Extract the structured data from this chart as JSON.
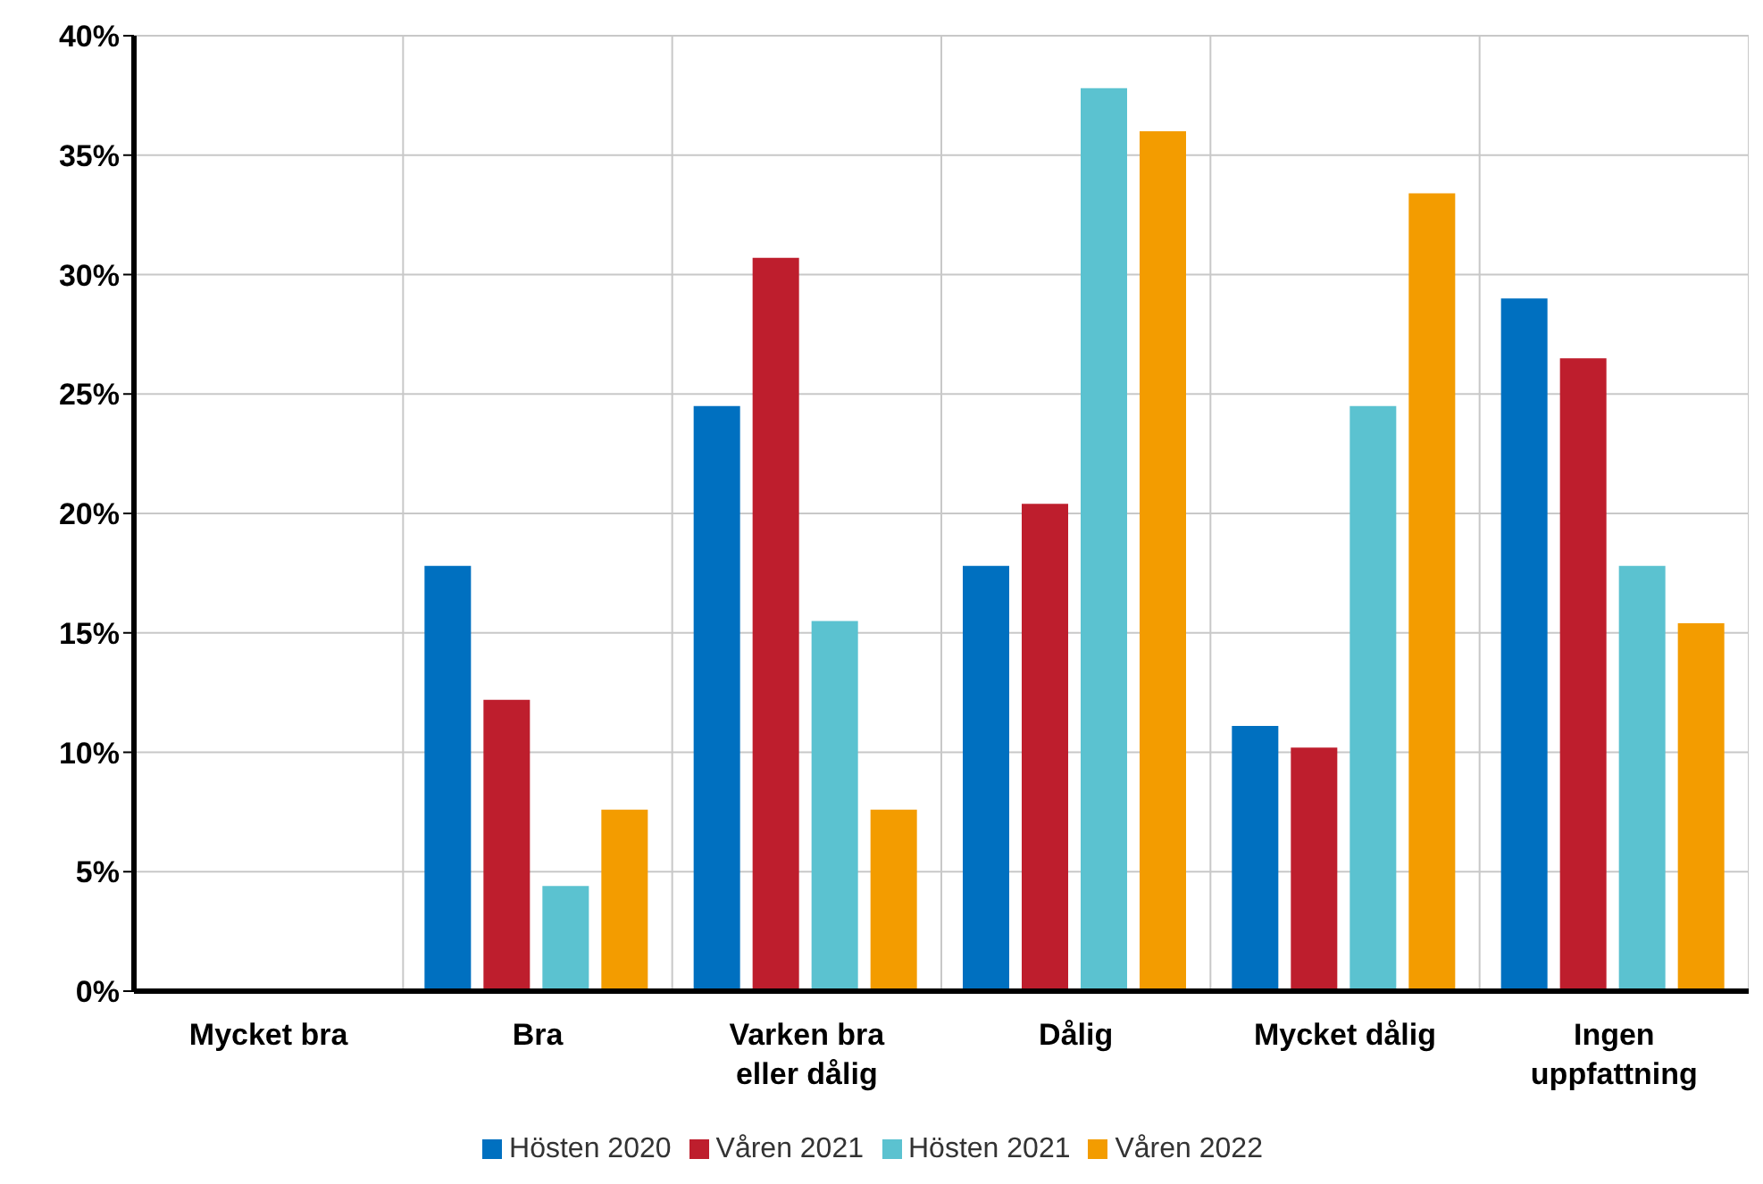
{
  "chart_data": {
    "type": "bar",
    "categories": [
      "Mycket bra",
      "Bra",
      "Varken bra eller dålig",
      "Dålig",
      "Mycket dålig",
      "Ingen uppfattning"
    ],
    "series": [
      {
        "name": "Hösten 2020",
        "color": "#0070c0",
        "values": [
          0,
          17.8,
          24.5,
          17.8,
          11.1,
          29.0
        ]
      },
      {
        "name": "Våren 2021",
        "color": "#be1e2d",
        "values": [
          0,
          12.2,
          30.7,
          20.4,
          10.2,
          26.5
        ]
      },
      {
        "name": "Hösten 2021",
        "color": "#5bc2d0",
        "values": [
          0,
          4.4,
          15.5,
          37.8,
          24.5,
          17.8
        ]
      },
      {
        "name": "Våren 2022",
        "color": "#f39c00",
        "values": [
          0,
          7.6,
          7.6,
          36.0,
          33.4,
          15.4
        ]
      }
    ],
    "ylim": [
      0,
      40
    ],
    "yticks": [
      {
        "value": 0,
        "label": "0%"
      },
      {
        "value": 5,
        "label": "5%"
      },
      {
        "value": 10,
        "label": "10%"
      },
      {
        "value": 15,
        "label": "15%"
      },
      {
        "value": 20,
        "label": "20%"
      },
      {
        "value": 25,
        "label": "25%"
      },
      {
        "value": 30,
        "label": "30%"
      },
      {
        "value": 35,
        "label": "35%"
      },
      {
        "value": 40,
        "label": "40%"
      }
    ],
    "grid": true,
    "legend": "bottom"
  }
}
